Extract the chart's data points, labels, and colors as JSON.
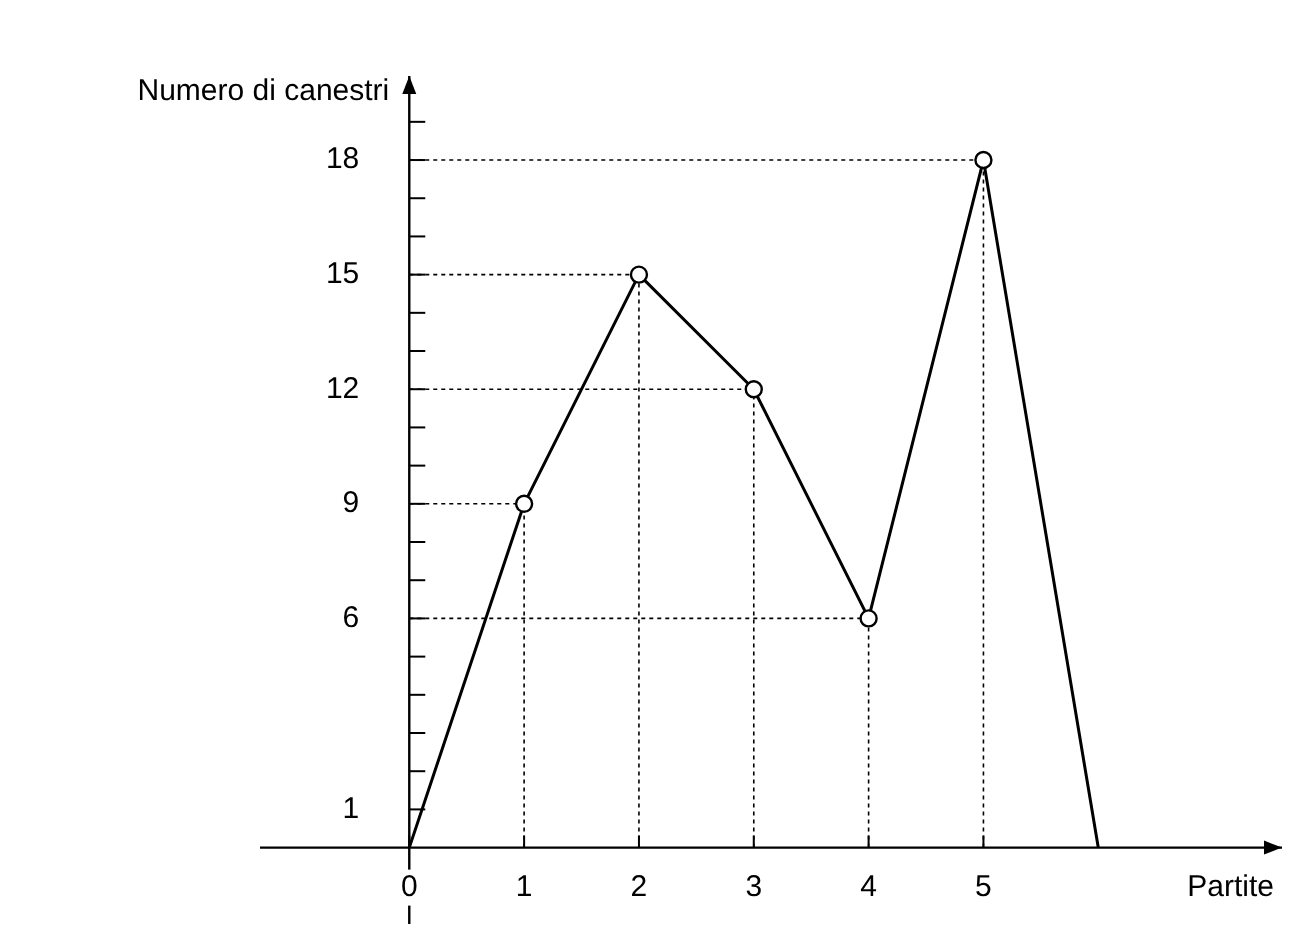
{
  "chart_data": {
    "type": "line",
    "xlabel": "Partite",
    "ylabel": "Numero di canestri",
    "x": [
      0,
      1,
      2,
      3,
      4,
      5,
      6
    ],
    "series": [
      {
        "color": "#000000",
        "values": [
          0,
          9,
          15,
          12,
          6,
          18,
          0
        ]
      }
    ],
    "xlim": [
      -1.3,
      7.6
    ],
    "ylim": [
      -2,
      20.2
    ],
    "xticks": [
      0,
      1,
      2,
      3,
      4,
      5
    ],
    "yticks": [
      {
        "value": 1,
        "label": "1"
      },
      {
        "value": 2,
        "label": null
      },
      {
        "value": 3,
        "label": null
      },
      {
        "value": 4,
        "label": null
      },
      {
        "value": 5,
        "label": null
      },
      6,
      {
        "value": 7,
        "label": null
      },
      {
        "value": 8,
        "label": null
      },
      9,
      {
        "value": 10,
        "label": null
      },
      {
        "value": 11,
        "label": null
      },
      12,
      {
        "value": 13,
        "label": null
      },
      {
        "value": 14,
        "label": null
      },
      15,
      {
        "value": 16,
        "label": null
      },
      {
        "value": 17,
        "label": null
      },
      18,
      {
        "value": 19,
        "label": null
      }
    ],
    "marker": "circle",
    "ref_lines": [
      {
        "axis": "y",
        "value": 9,
        "line_style": "dotted",
        "color": "#000000"
      },
      {
        "axis": "y",
        "value": 15,
        "line_style": "dotted",
        "color": "#000000"
      },
      {
        "axis": "y",
        "value": 12,
        "line_style": "dotted",
        "color": "#000000"
      },
      {
        "axis": "y",
        "value": 6,
        "line_style": "dotted",
        "color": "#000000"
      },
      {
        "axis": "y",
        "value": 18,
        "line_style": "dotted",
        "color": "#000000"
      },
      {
        "axis": "x",
        "value": 1,
        "line_style": "dotted",
        "color": "#000000"
      },
      {
        "axis": "x",
        "value": 2,
        "line_style": "dotted",
        "color": "#000000"
      },
      {
        "axis": "x",
        "value": 3,
        "line_style": "dotted",
        "color": "#000000"
      },
      {
        "axis": "x",
        "value": 4,
        "line_style": "dotted",
        "color": "#000000"
      },
      {
        "axis": "x",
        "value": 5,
        "line_style": "dotted",
        "color": "#000000"
      }
    ],
    "line_style": "solid",
    "grid": false,
    "legend": false
  }
}
